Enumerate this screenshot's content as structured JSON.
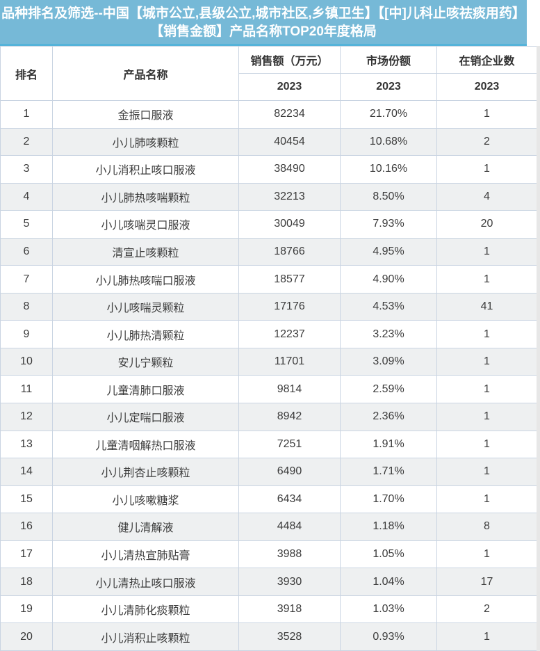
{
  "title": "品种排名及筛选--中国【城市公立,县级公立,城市社区,乡镇卫生】【[中]儿科止咳祛痰用药】【销售金额】产品名称TOP20年度格局",
  "table": {
    "columns": {
      "rank": "排名",
      "product": "产品名称",
      "sales": "销售额（万元）",
      "share": "市场份额",
      "companies": "在销企业数"
    },
    "year": "2023"
  },
  "colors": {
    "title_bg": "#76b9d7",
    "title_accent_line": "#55b3d9",
    "title_text": "#ffffff",
    "row_stripe": "#eef0f1",
    "cell_border": "#c9d4e2",
    "body_text": "#3b3b3b"
  },
  "chart_data": {
    "type": "table",
    "title": "品种排名及筛选--中国【城市公立,县级公立,城市社区,乡镇卫生】【[中]儿科止咳祛痰用药】【销售金额】产品名称TOP20年度格局",
    "columns": [
      "排名",
      "产品名称",
      "销售额（万元）2023",
      "市场份额 2023",
      "在销企业数 2023"
    ],
    "rows": [
      [
        "1",
        "金振口服液",
        "82234",
        "21.70%",
        "1"
      ],
      [
        "2",
        "小儿肺咳颗粒",
        "40454",
        "10.68%",
        "2"
      ],
      [
        "3",
        "小儿消积止咳口服液",
        "38490",
        "10.16%",
        "1"
      ],
      [
        "4",
        "小儿肺热咳喘颗粒",
        "32213",
        "8.50%",
        "4"
      ],
      [
        "5",
        "小儿咳喘灵口服液",
        "30049",
        "7.93%",
        "20"
      ],
      [
        "6",
        "清宣止咳颗粒",
        "18766",
        "4.95%",
        "1"
      ],
      [
        "7",
        "小儿肺热咳喘口服液",
        "18577",
        "4.90%",
        "1"
      ],
      [
        "8",
        "小儿咳喘灵颗粒",
        "17176",
        "4.53%",
        "41"
      ],
      [
        "9",
        "小儿肺热清颗粒",
        "12237",
        "3.23%",
        "1"
      ],
      [
        "10",
        "安儿宁颗粒",
        "11701",
        "3.09%",
        "1"
      ],
      [
        "11",
        "儿童清肺口服液",
        "9814",
        "2.59%",
        "1"
      ],
      [
        "12",
        "小儿定喘口服液",
        "8942",
        "2.36%",
        "1"
      ],
      [
        "13",
        "儿童清咽解热口服液",
        "7251",
        "1.91%",
        "1"
      ],
      [
        "14",
        "小儿荆杏止咳颗粒",
        "6490",
        "1.71%",
        "1"
      ],
      [
        "15",
        "小儿咳嗽糖浆",
        "6434",
        "1.70%",
        "1"
      ],
      [
        "16",
        "健儿清解液",
        "4484",
        "1.18%",
        "8"
      ],
      [
        "17",
        "小儿清热宣肺贴膏",
        "3988",
        "1.05%",
        "1"
      ],
      [
        "18",
        "小儿清热止咳口服液",
        "3930",
        "1.04%",
        "17"
      ],
      [
        "19",
        "小儿清肺化痰颗粒",
        "3918",
        "1.03%",
        "2"
      ],
      [
        "20",
        "小儿消积止咳颗粒",
        "3528",
        "0.93%",
        "1"
      ]
    ]
  }
}
